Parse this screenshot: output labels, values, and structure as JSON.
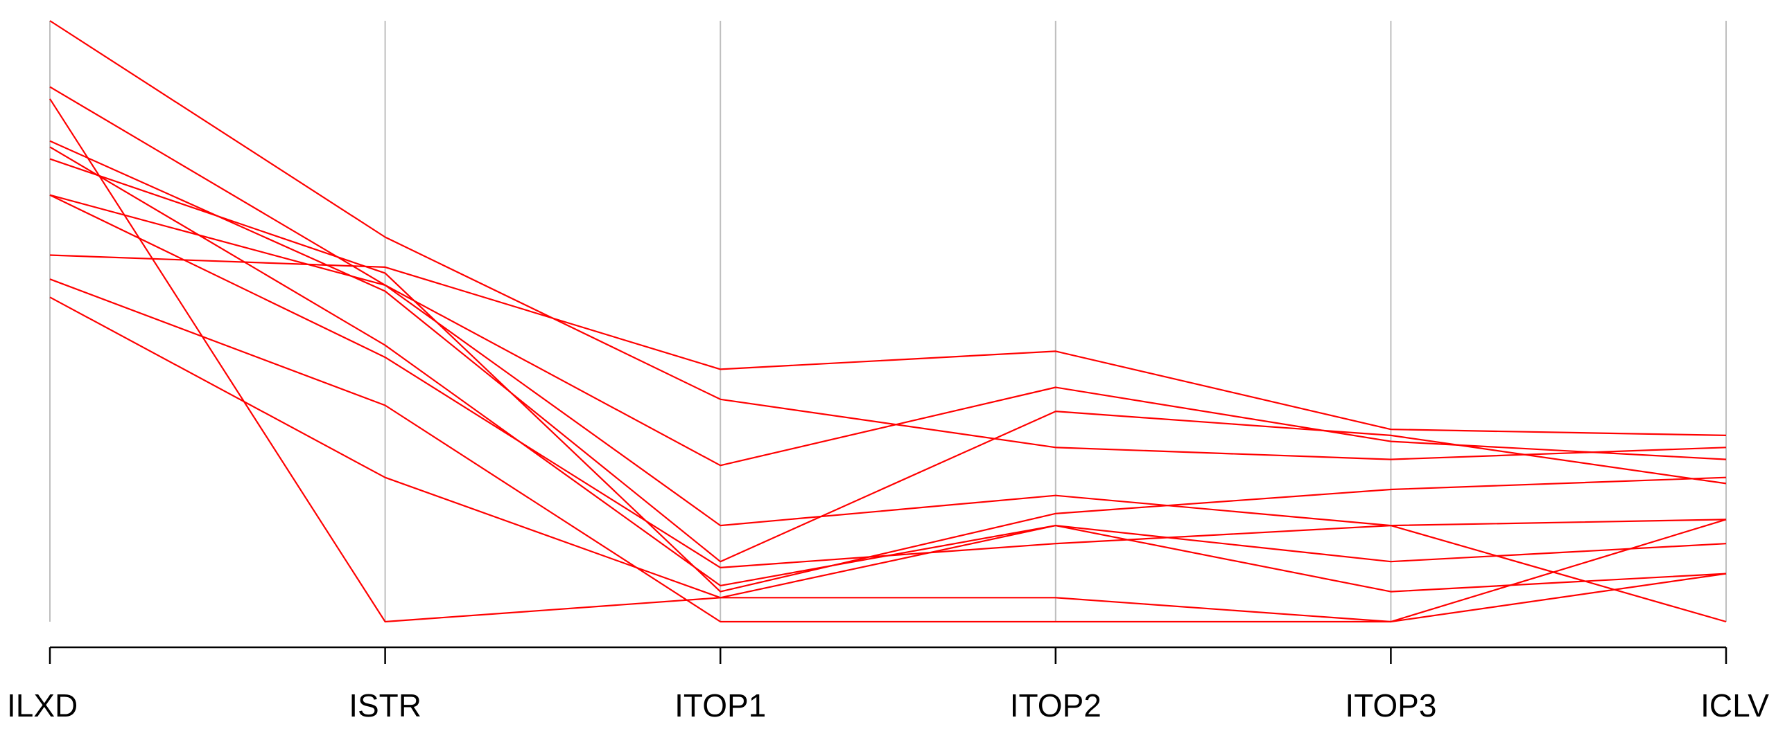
{
  "chart_data": {
    "type": "parallel-coordinates",
    "title": "",
    "xlabel": "",
    "ylabel": "",
    "axes": [
      "ILXD",
      "ISTR",
      "ITOP1",
      "ITOP2",
      "ITOP3",
      "ICLV"
    ],
    "ylim": [
      0,
      1
    ],
    "grid": false,
    "legend": "none",
    "line_color": "#ff0000",
    "axis_color": "#bebebe",
    "series": [
      {
        "values": [
          1.0,
          0.64,
          0.37,
          0.29,
          0.27,
          0.29
        ]
      },
      {
        "values": [
          0.89,
          0.56,
          0.26,
          0.39,
          0.3,
          0.27
        ]
      },
      {
        "values": [
          0.87,
          0.0,
          0.04,
          0.16,
          0.1,
          0.13
        ]
      },
      {
        "values": [
          0.8,
          0.55,
          0.1,
          0.35,
          0.31,
          0.23
        ]
      },
      {
        "values": [
          0.79,
          0.46,
          0.06,
          0.16,
          0.05,
          0.08
        ]
      },
      {
        "values": [
          0.71,
          0.56,
          0.16,
          0.21,
          0.16,
          0.17
        ]
      },
      {
        "values": [
          0.71,
          0.44,
          0.09,
          0.13,
          0.16,
          0.0
        ]
      },
      {
        "values": [
          0.61,
          0.59,
          0.42,
          0.45,
          0.32,
          0.31
        ]
      },
      {
        "values": [
          0.57,
          0.36,
          0.0,
          0.0,
          0.0,
          0.17
        ]
      },
      {
        "values": [
          0.54,
          0.24,
          0.04,
          0.04,
          0.0,
          0.08
        ]
      },
      {
        "values": [
          0.77,
          0.58,
          0.05,
          0.18,
          0.22,
          0.24
        ]
      }
    ]
  }
}
